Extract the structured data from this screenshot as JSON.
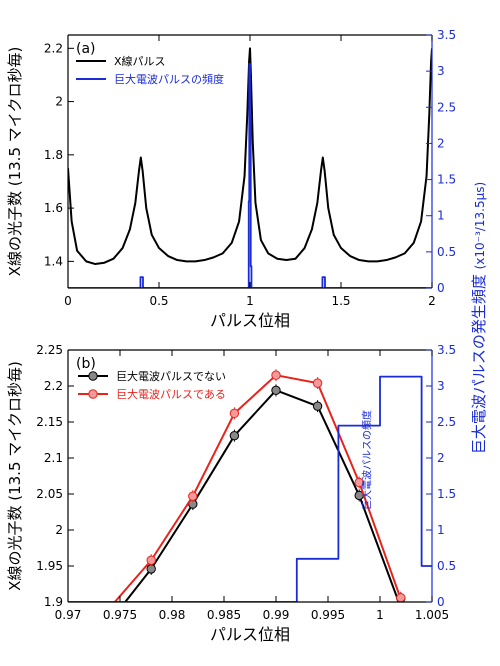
{
  "chart_data": [
    {
      "panel": "(a)",
      "type": "line",
      "xlabel": "パルス位相",
      "ylabel": "X線の光子数 (13.5 マイクロ秒毎)",
      "ylabel_right": "巨大電波パルスの発生頻度",
      "ylabel_right_unit": "(x10⁻³/13.5μs)",
      "xlim": [
        0,
        2
      ],
      "ylim": [
        1.3,
        2.25
      ],
      "ylim_right": [
        0,
        3.5
      ],
      "xticks": [
        "0",
        "0.5",
        "1",
        "1.5",
        "2"
      ],
      "yticks": [
        "1.4",
        "1.6",
        "1.8",
        "2",
        "2.2"
      ],
      "yticks_right": [
        "0",
        "0.5",
        "1",
        "1.5",
        "2",
        "2.5",
        "3",
        "3.5"
      ],
      "legend": [
        {
          "label": "X線パルス",
          "color": "#000000"
        },
        {
          "label": "巨大電波パルスの頻度",
          "color": "#1a2bd8"
        }
      ],
      "series": [
        {
          "name": "X線パルス",
          "axis": "left",
          "color": "#000000",
          "x": [
            0.0,
            0.02,
            0.05,
            0.1,
            0.15,
            0.2,
            0.25,
            0.3,
            0.34,
            0.37,
            0.39,
            0.4,
            0.41,
            0.43,
            0.46,
            0.5,
            0.55,
            0.6,
            0.65,
            0.7,
            0.75,
            0.8,
            0.85,
            0.9,
            0.94,
            0.97,
            0.985,
            0.995,
            1.0,
            1.005,
            1.015,
            1.03,
            1.06,
            1.1,
            1.15,
            1.2,
            1.25,
            1.3,
            1.34,
            1.37,
            1.39,
            1.4,
            1.41,
            1.43,
            1.46,
            1.5,
            1.55,
            1.6,
            1.65,
            1.7,
            1.75,
            1.8,
            1.85,
            1.9,
            1.94,
            1.97,
            1.985,
            1.995,
            2.0
          ],
          "y": [
            1.75,
            1.55,
            1.44,
            1.4,
            1.39,
            1.395,
            1.41,
            1.45,
            1.52,
            1.62,
            1.74,
            1.79,
            1.74,
            1.6,
            1.5,
            1.45,
            1.42,
            1.405,
            1.4,
            1.4,
            1.405,
            1.415,
            1.43,
            1.47,
            1.55,
            1.72,
            1.95,
            2.15,
            2.2,
            2.1,
            1.85,
            1.62,
            1.48,
            1.43,
            1.41,
            1.405,
            1.41,
            1.45,
            1.52,
            1.62,
            1.74,
            1.79,
            1.74,
            1.6,
            1.5,
            1.45,
            1.42,
            1.405,
            1.4,
            1.4,
            1.405,
            1.415,
            1.43,
            1.47,
            1.55,
            1.72,
            1.95,
            2.15,
            2.2
          ]
        },
        {
          "name": "巨大電波パルスの頻度",
          "axis": "right",
          "color": "#1a2bd8",
          "x": [
            0.0,
            0.398,
            0.398,
            0.412,
            0.412,
            0.993,
            0.993,
            0.996,
            0.996,
            1.0,
            1.0,
            1.004,
            1.004,
            1.008,
            1.008,
            1.398,
            1.398,
            1.412,
            1.412,
            2.0
          ],
          "y": [
            0.0,
            0.0,
            0.15,
            0.15,
            0.0,
            0.0,
            1.2,
            1.2,
            3.1,
            3.1,
            2.4,
            2.4,
            0.3,
            0.3,
            0.0,
            0.0,
            0.15,
            0.15,
            0.0,
            0.0
          ]
        }
      ]
    },
    {
      "panel": "(b)",
      "type": "line",
      "xlabel": "パルス位相",
      "ylabel": "X線の光子数 (13.5 マイクロ秒毎)",
      "ylabel_right": "巨大電波パルスの発生頻度",
      "xlim": [
        0.97,
        1.005
      ],
      "ylim": [
        1.9,
        2.25
      ],
      "ylim_right": [
        0,
        3.5
      ],
      "xticks": [
        "0.97",
        "0.975",
        "0.98",
        "0.985",
        "0.99",
        "0.995",
        "1",
        "1.005"
      ],
      "yticks": [
        "1.9",
        "1.95",
        "2",
        "2.05",
        "2.1",
        "2.15",
        "2.2",
        "2.25"
      ],
      "yticks_right": [
        "0",
        "0.5",
        "1",
        "1.5",
        "2",
        "2.5",
        "3",
        "3.5"
      ],
      "legend": [
        {
          "label": "巨大電波パルスでない",
          "color": "#000000"
        },
        {
          "label": "巨大電波パルスである",
          "color": "#e8231c"
        }
      ],
      "annotation": "巨大電波パルスの頻度",
      "series": [
        {
          "name": "巨大電波パルスでない",
          "axis": "left",
          "color": "#000000",
          "marker_fill": "#888888",
          "x": [
            0.978,
            0.982,
            0.986,
            0.99,
            0.994,
            0.998,
            1.002
          ],
          "y": [
            1.946,
            2.036,
            2.131,
            2.194,
            2.172,
            2.048,
            1.905
          ],
          "line_x": [
            0.9755,
            0.978,
            0.982,
            0.986,
            0.99,
            0.994,
            0.998,
            1.0018
          ],
          "line_y": [
            1.9,
            1.946,
            2.036,
            2.131,
            2.194,
            2.172,
            2.048,
            1.9
          ]
        },
        {
          "name": "巨大電波パルスである",
          "axis": "left",
          "color": "#e8231c",
          "marker_fill": "#f29a9a",
          "x": [
            0.978,
            0.982,
            0.986,
            0.99,
            0.994,
            0.998,
            1.002
          ],
          "y": [
            1.958,
            2.047,
            2.162,
            2.215,
            2.204,
            2.066,
            1.906
          ],
          "line_x": [
            0.9745,
            0.978,
            0.982,
            0.986,
            0.99,
            0.994,
            0.998,
            1.0021
          ],
          "line_y": [
            1.9,
            1.958,
            2.047,
            2.162,
            2.215,
            2.204,
            2.066,
            1.9
          ]
        },
        {
          "name": "巨大電波パルスの頻度",
          "axis": "right",
          "color": "#1a2bd8",
          "x": [
            0.97,
            0.992,
            0.992,
            0.996,
            0.996,
            1.0,
            1.0,
            1.004,
            1.004,
            1.005
          ],
          "y": [
            0.0,
            0.0,
            0.6,
            0.6,
            2.45,
            2.45,
            3.13,
            3.13,
            0.5,
            0.5
          ]
        }
      ]
    }
  ]
}
